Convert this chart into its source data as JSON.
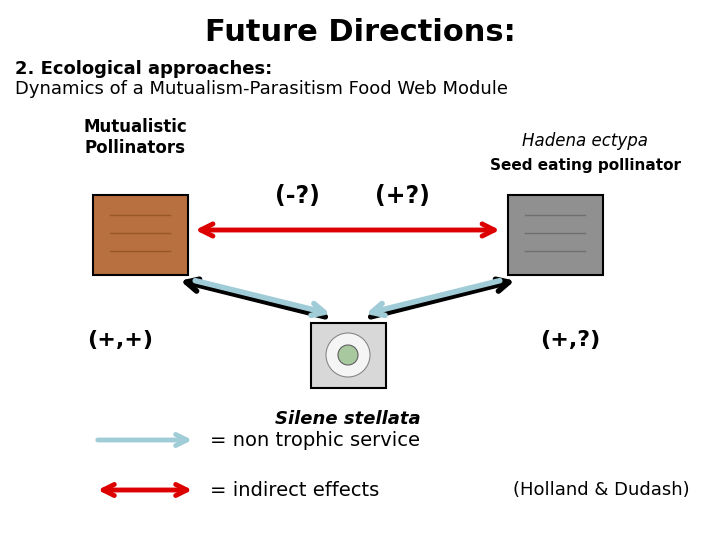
{
  "title": "Future Directions:",
  "subtitle_bold": "2. Ecological approaches:",
  "subtitle_normal": "Dynamics of a Mutualism-Parasitism Food Web Module",
  "label_mutualistic": "Mutualistic\nPollinators",
  "label_hadena_italic": "Hadena ectypa",
  "label_hadena_bold": "Seed eating pollinator",
  "label_silene": "Silene stellata",
  "label_neg": "(-?)",
  "label_pos": "(+?)",
  "label_bl": "(+,+)",
  "label_br": "(+,?)",
  "legend_blue": "= non trophic service",
  "legend_red": "= indirect effects",
  "citation": "(Holland & Dudash)",
  "bg_color": "#ffffff",
  "arrow_red": "#dd0000",
  "arrow_light_blue": "#a0ccd8",
  "arrow_black": "#000000",
  "moth_color": "#b87040",
  "hadena_color": "#909090",
  "silene_color": "#e8e8e8"
}
